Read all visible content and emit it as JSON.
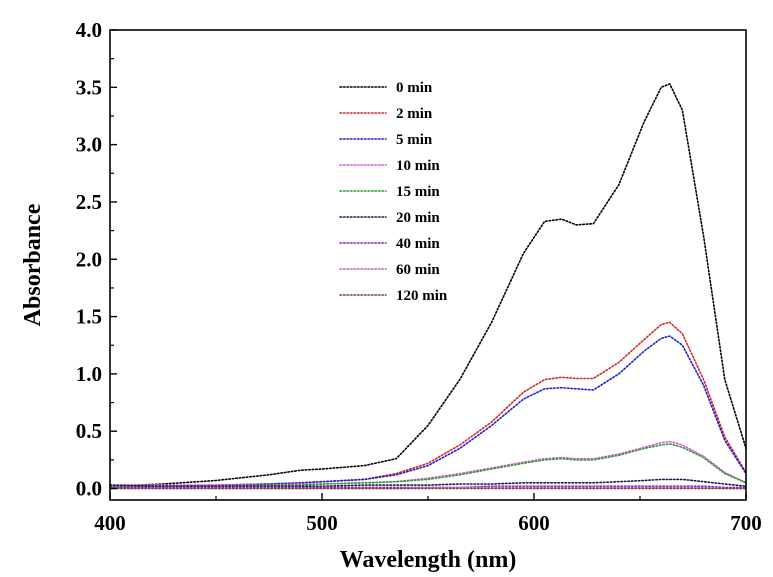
{
  "chart_data": {
    "type": "line",
    "title": "",
    "xlabel": "Wavelength (nm)",
    "ylabel": "Absorbance",
    "xlim": [
      400,
      700
    ],
    "ylim": [
      -0.1,
      4.0
    ],
    "x_ticks": [
      400,
      500,
      600,
      700
    ],
    "x_tick_labels": [
      "400",
      "500",
      "600",
      "700"
    ],
    "y_ticks": [
      0.0,
      0.5,
      1.0,
      1.5,
      2.0,
      2.5,
      3.0,
      3.5,
      4.0
    ],
    "y_tick_labels": [
      "0.0",
      "0.5",
      "1.0",
      "1.5",
      "2.0",
      "2.5",
      "3.0",
      "3.5",
      "4.0"
    ],
    "grid": false,
    "legend_position": "top-center",
    "line_style": "dotted",
    "x": [
      400,
      425,
      450,
      475,
      490,
      500,
      520,
      535,
      550,
      565,
      580,
      595,
      605,
      613,
      620,
      628,
      640,
      652,
      660,
      664,
      670,
      680,
      690,
      700
    ],
    "series": [
      {
        "name": "0 min",
        "color": "#000000",
        "values": [
          0.02,
          0.04,
          0.07,
          0.12,
          0.16,
          0.17,
          0.2,
          0.26,
          0.55,
          0.95,
          1.45,
          2.05,
          2.33,
          2.35,
          2.3,
          2.31,
          2.65,
          3.2,
          3.5,
          3.53,
          3.3,
          2.2,
          0.95,
          0.35
        ]
      },
      {
        "name": "2 min",
        "color": "#d62728",
        "values": [
          0.01,
          0.02,
          0.03,
          0.04,
          0.05,
          0.06,
          0.08,
          0.13,
          0.22,
          0.38,
          0.58,
          0.84,
          0.95,
          0.97,
          0.96,
          0.96,
          1.1,
          1.3,
          1.43,
          1.45,
          1.35,
          0.95,
          0.45,
          0.14
        ]
      },
      {
        "name": "5 min",
        "color": "#1f1fcc",
        "values": [
          0.01,
          0.02,
          0.03,
          0.04,
          0.05,
          0.06,
          0.08,
          0.12,
          0.2,
          0.35,
          0.55,
          0.78,
          0.87,
          0.88,
          0.87,
          0.86,
          1.0,
          1.2,
          1.31,
          1.33,
          1.25,
          0.9,
          0.42,
          0.13
        ]
      },
      {
        "name": "10 min",
        "color": "#e055e0",
        "values": [
          0.03,
          0.03,
          0.03,
          0.03,
          0.04,
          0.04,
          0.05,
          0.06,
          0.09,
          0.13,
          0.18,
          0.23,
          0.26,
          0.27,
          0.26,
          0.26,
          0.3,
          0.36,
          0.4,
          0.41,
          0.38,
          0.28,
          0.14,
          0.05
        ]
      },
      {
        "name": "15 min",
        "color": "#2ca02c",
        "values": [
          0.02,
          0.02,
          0.02,
          0.03,
          0.03,
          0.04,
          0.05,
          0.06,
          0.08,
          0.12,
          0.17,
          0.22,
          0.25,
          0.26,
          0.25,
          0.25,
          0.29,
          0.35,
          0.38,
          0.39,
          0.36,
          0.27,
          0.13,
          0.05
        ]
      },
      {
        "name": "20 min",
        "color": "#1a1a4a",
        "values": [
          0.03,
          0.02,
          0.02,
          0.02,
          0.02,
          0.02,
          0.03,
          0.03,
          0.03,
          0.04,
          0.04,
          0.05,
          0.05,
          0.05,
          0.05,
          0.05,
          0.06,
          0.07,
          0.08,
          0.08,
          0.08,
          0.06,
          0.04,
          0.02
        ]
      },
      {
        "name": "40 min",
        "color": "#7b2fbf",
        "values": [
          0.01,
          0.01,
          0.01,
          0.01,
          0.01,
          0.01,
          0.01,
          0.01,
          0.01,
          0.01,
          0.02,
          0.02,
          0.02,
          0.02,
          0.02,
          0.02,
          0.02,
          0.02,
          0.02,
          0.02,
          0.02,
          0.02,
          0.01,
          0.01
        ]
      },
      {
        "name": "60 min",
        "color": "#c060c0",
        "values": [
          0.0,
          0.0,
          0.0,
          0.0,
          0.0,
          0.0,
          0.0,
          0.0,
          0.01,
          0.01,
          0.01,
          0.01,
          0.01,
          0.01,
          0.01,
          0.01,
          0.01,
          0.01,
          0.01,
          0.01,
          0.01,
          0.01,
          0.0,
          0.0
        ]
      },
      {
        "name": "120 min",
        "color": "#8b3a3a",
        "values": [
          0.0,
          0.0,
          0.0,
          0.0,
          0.0,
          0.0,
          0.0,
          0.0,
          0.0,
          0.0,
          0.0,
          0.0,
          0.0,
          0.0,
          0.0,
          0.0,
          0.0,
          0.0,
          0.0,
          0.0,
          0.0,
          0.0,
          0.0,
          0.0
        ]
      }
    ]
  }
}
